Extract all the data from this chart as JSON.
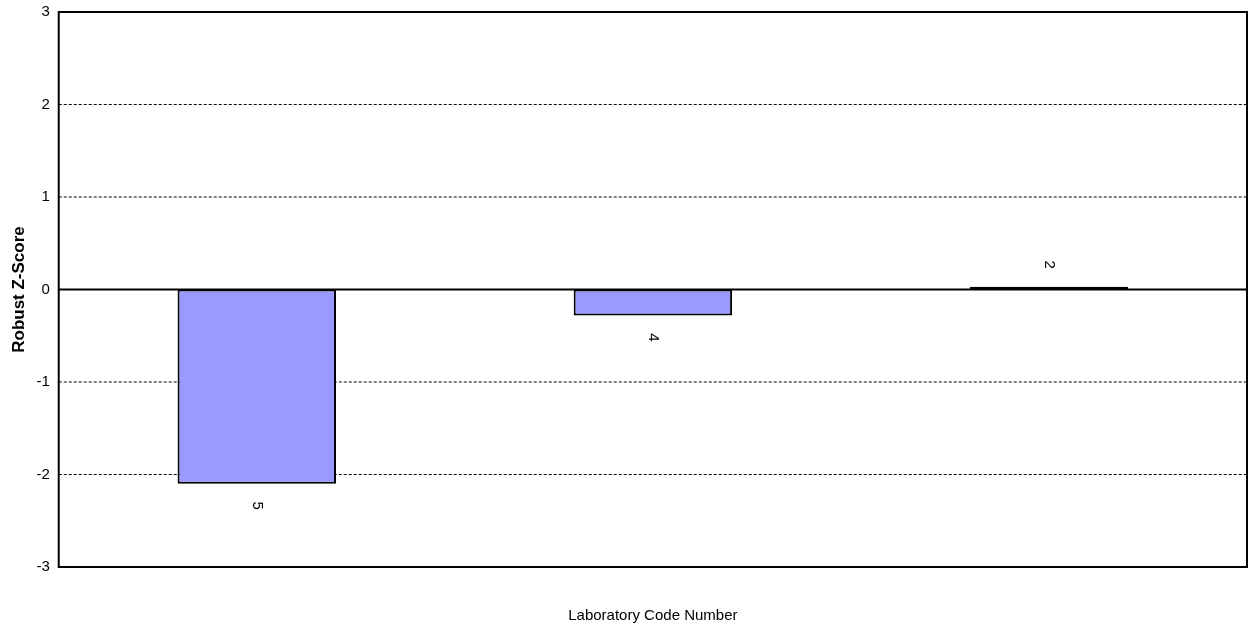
{
  "chart_data": {
    "type": "bar",
    "xlabel": "Laboratory Code Number",
    "ylabel": "Robust Z-Score",
    "categories": [
      "5",
      "4",
      "2"
    ],
    "series": [
      {
        "colors": [
          "#9999ff",
          "#9999ff",
          "#000000"
        ],
        "values": [
          -2.1,
          -0.28,
          0.03
        ]
      }
    ],
    "ylim": [
      -3,
      3
    ],
    "yticks": [
      -3,
      -2,
      -1,
      0,
      1,
      2,
      3
    ],
    "grid": "y",
    "legend": false
  }
}
